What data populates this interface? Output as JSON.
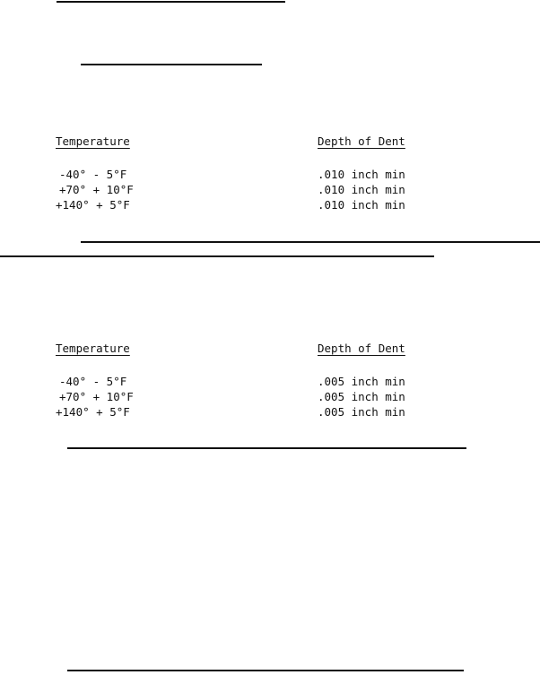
{
  "tables": [
    {
      "headers": [
        "Temperature",
        "Depth of Dent"
      ],
      "rows": [
        [
          "-40° - 5°F",
          ".010 inch min"
        ],
        [
          "+70° + 10°F",
          ".010 inch min"
        ],
        [
          "+140° + 5°F",
          ".010 inch min"
        ]
      ]
    },
    {
      "headers": [
        "Temperature",
        "Depth of Dent"
      ],
      "rows": [
        [
          "-40° - 5°F",
          ".005 inch min"
        ],
        [
          "+70° + 10°F",
          ".005 inch min"
        ],
        [
          "+140° + 5°F",
          ".005 inch min"
        ]
      ]
    }
  ]
}
